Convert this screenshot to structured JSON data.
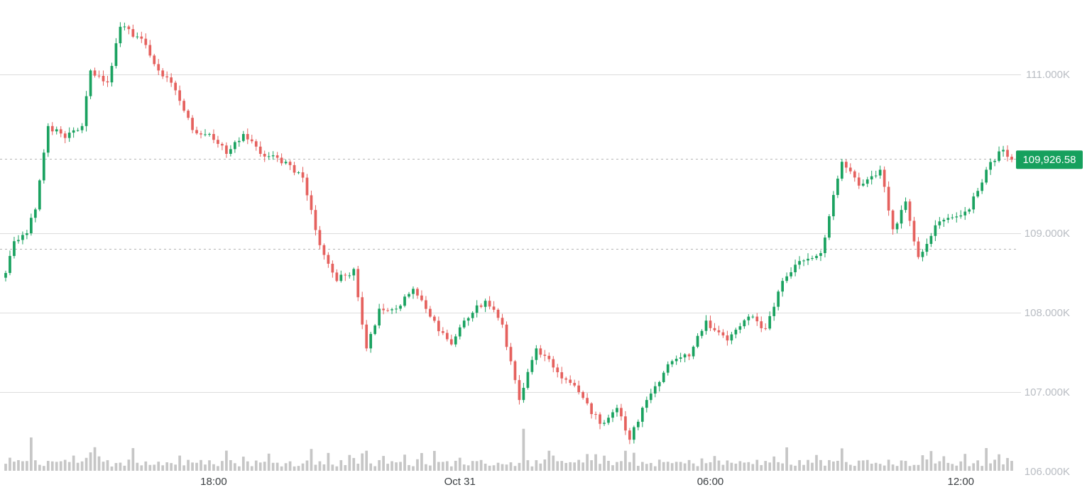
{
  "chart_data": {
    "type": "candlestick",
    "title": "",
    "ylim": [
      106000,
      111850
    ],
    "y_ticks": [
      {
        "value": 111000,
        "label": "111.000K"
      },
      {
        "value": 109000,
        "label": "109.000K"
      },
      {
        "value": 108000,
        "label": "108.000K"
      },
      {
        "value": 107000,
        "label": "107.000K"
      },
      {
        "value": 106000,
        "label": "106.000K"
      }
    ],
    "x_ticks": [
      {
        "label": "18:00",
        "index": 49
      },
      {
        "label": "Oct 31",
        "index": 107
      },
      {
        "label": "06:00",
        "index": 166
      },
      {
        "label": "12:00",
        "index": 225
      }
    ],
    "last_price": {
      "value": 109926.58,
      "label": "109,926.58"
    },
    "reference_lines": [
      109940,
      108800
    ],
    "grid": true,
    "colors": {
      "up": "#1aa260",
      "down": "#e5615e",
      "volume": "#c6c6c6",
      "grid": "#dcdcdc",
      "price_tag": "#16a05d"
    },
    "anchors": [
      [
        0,
        108500
      ],
      [
        2,
        108900
      ],
      [
        5,
        109000
      ],
      [
        7,
        109300
      ],
      [
        10,
        110350
      ],
      [
        14,
        110200
      ],
      [
        18,
        110350
      ],
      [
        20,
        111050
      ],
      [
        24,
        110900
      ],
      [
        27,
        111600
      ],
      [
        32,
        111450
      ],
      [
        36,
        111050
      ],
      [
        40,
        110800
      ],
      [
        44,
        110300
      ],
      [
        48,
        110250
      ],
      [
        52,
        110000
      ],
      [
        56,
        110250
      ],
      [
        60,
        110000
      ],
      [
        66,
        109900
      ],
      [
        70,
        109700
      ],
      [
        74,
        108850
      ],
      [
        78,
        108400
      ],
      [
        82,
        108550
      ],
      [
        85,
        107550
      ],
      [
        88,
        108050
      ],
      [
        92,
        108050
      ],
      [
        96,
        108300
      ],
      [
        100,
        107950
      ],
      [
        105,
        107600
      ],
      [
        108,
        107900
      ],
      [
        113,
        108150
      ],
      [
        117,
        107850
      ],
      [
        121,
        106900
      ],
      [
        125,
        107550
      ],
      [
        130,
        107250
      ],
      [
        135,
        107000
      ],
      [
        140,
        106600
      ],
      [
        144,
        106800
      ],
      [
        147,
        106400
      ],
      [
        151,
        106900
      ],
      [
        156,
        107350
      ],
      [
        161,
        107450
      ],
      [
        165,
        107900
      ],
      [
        170,
        107650
      ],
      [
        175,
        107950
      ],
      [
        179,
        107800
      ],
      [
        183,
        108400
      ],
      [
        187,
        108650
      ],
      [
        192,
        108750
      ],
      [
        197,
        109900
      ],
      [
        201,
        109600
      ],
      [
        206,
        109800
      ],
      [
        209,
        109050
      ],
      [
        212,
        109400
      ],
      [
        215,
        108700
      ],
      [
        219,
        109100
      ],
      [
        223,
        109200
      ],
      [
        227,
        109300
      ],
      [
        231,
        109800
      ],
      [
        235,
        110050
      ],
      [
        237,
        109926.58
      ]
    ],
    "volume_spikes": [
      [
        6,
        3
      ],
      [
        16,
        2.6
      ],
      [
        21,
        2.5
      ],
      [
        30,
        4.5
      ],
      [
        52,
        2.2
      ],
      [
        72,
        2.4
      ],
      [
        84,
        2.8
      ],
      [
        85,
        3.8
      ],
      [
        122,
        4
      ],
      [
        139,
        2.2
      ],
      [
        184,
        2.4
      ],
      [
        197,
        3
      ],
      [
        231,
        4
      ],
      [
        234,
        2.4
      ]
    ]
  }
}
